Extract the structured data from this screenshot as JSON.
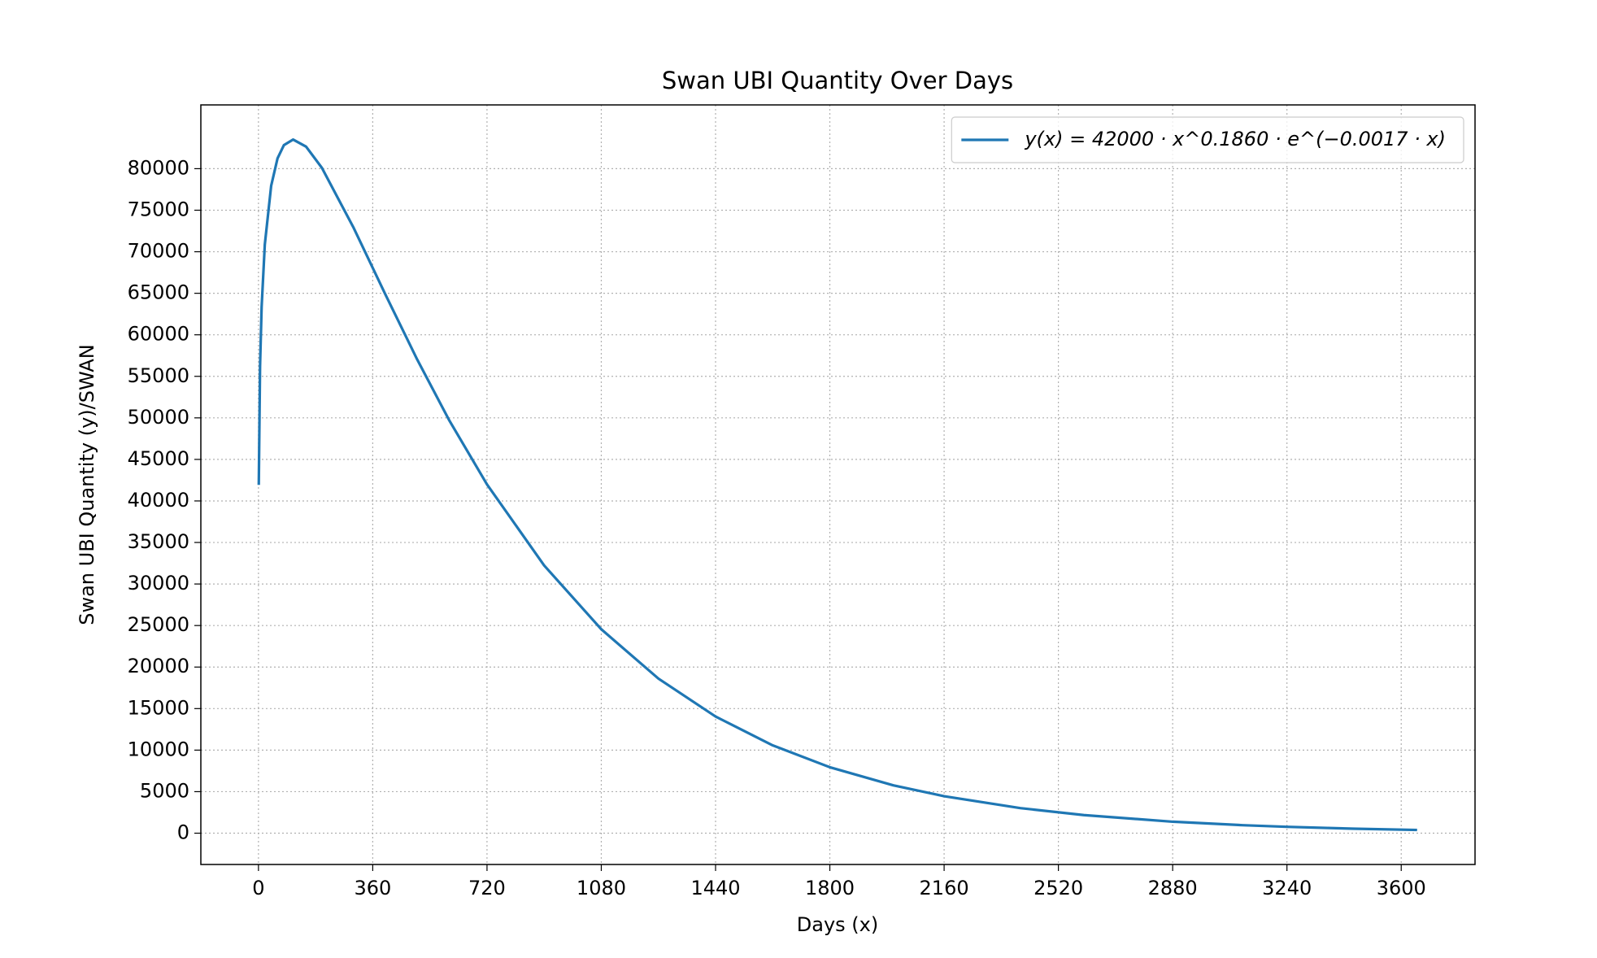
{
  "chart_data": {
    "type": "line",
    "title": "Swan UBI Quantity Over Days",
    "x_label": "Days (x)",
    "y_label": "Swan UBI Quantity (y)/SWAN",
    "x": [
      1,
      5,
      10,
      20,
      40,
      60,
      80,
      109,
      150,
      200,
      300,
      400,
      500,
      600,
      720,
      900,
      1080,
      1260,
      1440,
      1620,
      1800,
      2000,
      2160,
      2400,
      2600,
      2880,
      3100,
      3240,
      3450,
      3650
    ],
    "series": [
      {
        "name": "y(x) = 42000 · x^0.1860 · e^(−0.0017 · x)",
        "color": "#1f77b4",
        "values": [
          41929,
          56180,
          63368,
          70867,
          77933,
          81230,
          82828,
          83508,
          82653,
          80090,
          72864,
          64849,
          57029,
          49774,
          41989,
          32232,
          24552,
          18608,
          14045,
          10572,
          7940,
          5762,
          4453,
          3021,
          2183,
          1382,
          964,
          766,
          542,
          390
        ]
      }
    ],
    "xlim": [
      -181.5,
      3832.5
    ],
    "ylim": [
      -3767,
      87677
    ],
    "xticks": [
      0,
      360,
      720,
      1080,
      1440,
      1800,
      2160,
      2520,
      2880,
      3240,
      3600
    ],
    "yticks": [
      0,
      5000,
      10000,
      15000,
      20000,
      25000,
      30000,
      35000,
      40000,
      45000,
      50000,
      55000,
      60000,
      65000,
      70000,
      75000,
      80000
    ],
    "grid": true,
    "legend": "upper right"
  }
}
